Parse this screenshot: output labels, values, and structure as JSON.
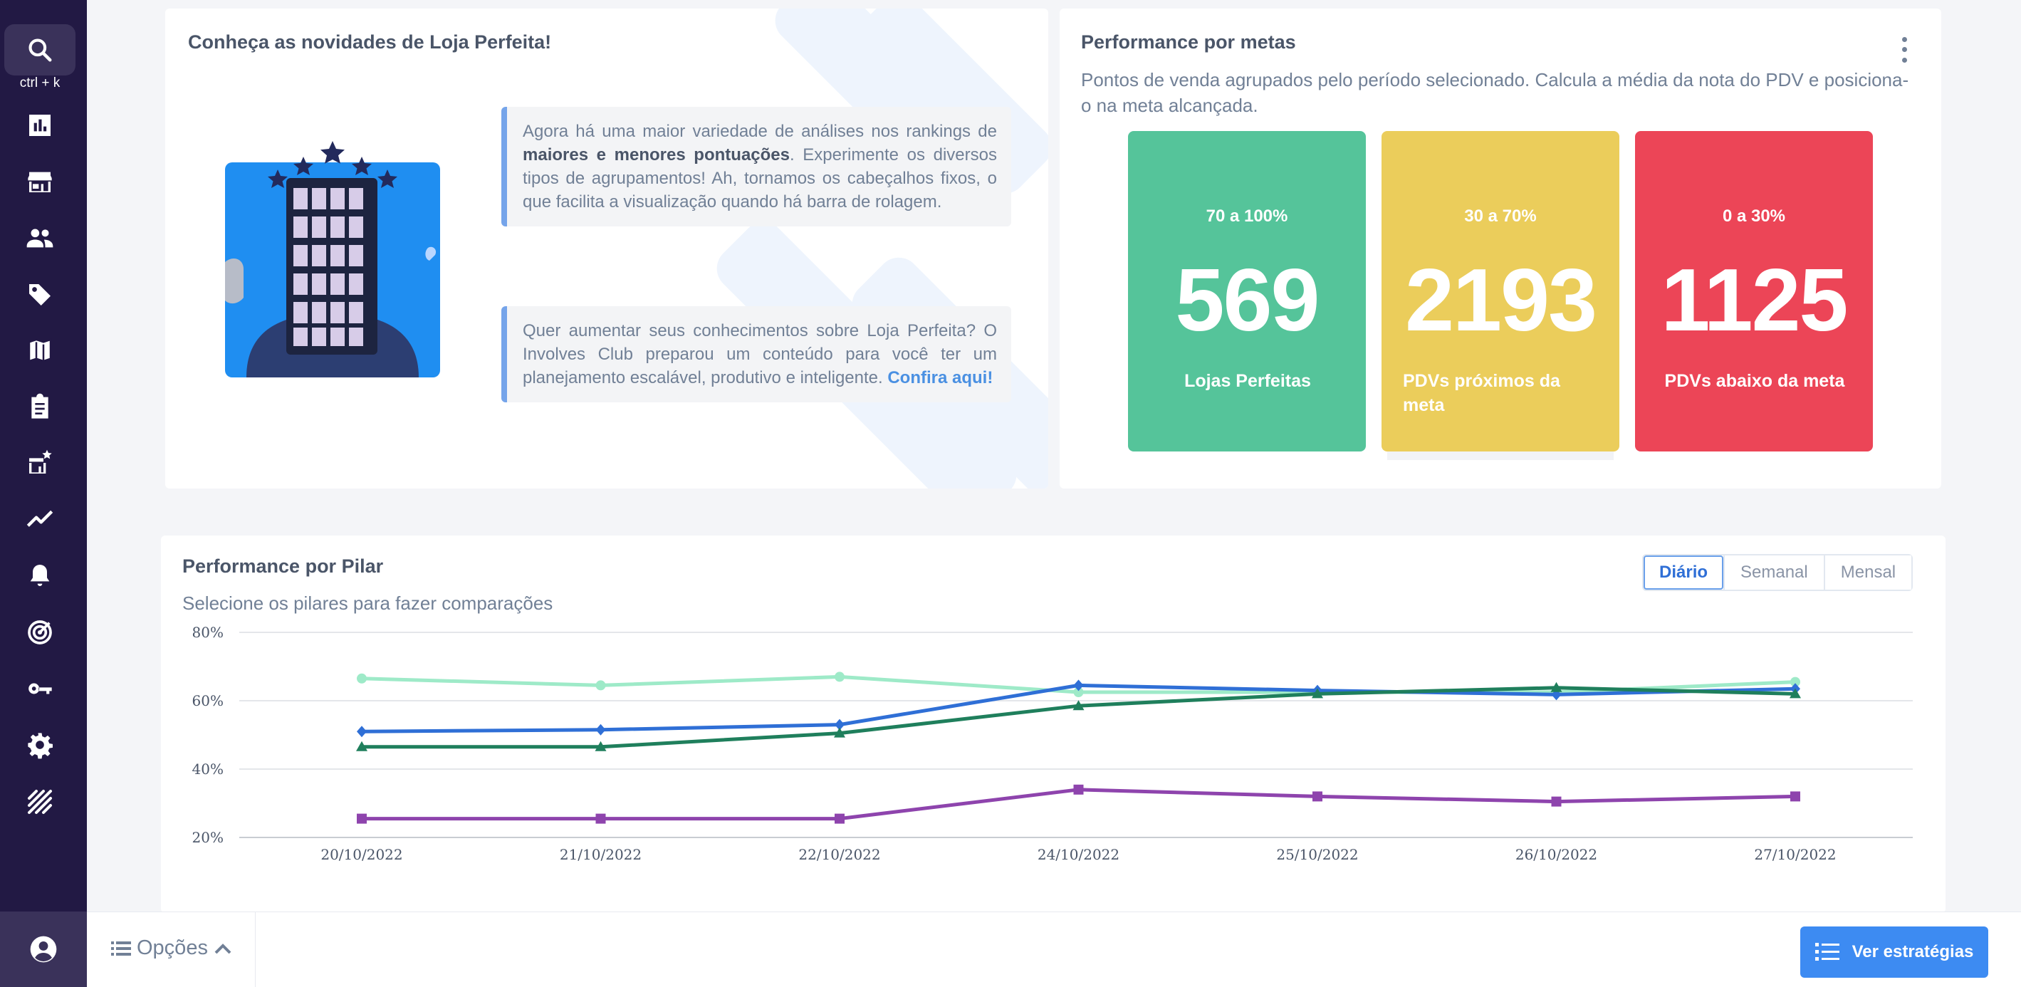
{
  "sidebar": {
    "search_shortcut": "ctrl + k",
    "icons": [
      "search-icon",
      "dashboard-icon",
      "store-icon",
      "people-icon",
      "tag-icon",
      "map-icon",
      "clipboard-icon",
      "store-star-icon",
      "trend-icon",
      "bell-icon",
      "radar-icon",
      "key-icon",
      "gear-icon",
      "stripes-logo-icon",
      "user-account-icon"
    ]
  },
  "news": {
    "title": "Conheça as novidades de Loja Perfeita!",
    "note1": {
      "before": "Agora há uma maior variedade de análises nos rankings de ",
      "bold": "maiores e menores pontuações",
      "after": ". Experimente os diversos tipos de agrupamentos! Ah, tornamos os cabeçalhos fixos, o que facilita a visualização quando há barra de rolagem."
    },
    "note2": {
      "text": "Quer aumentar seus conhecimentos sobre Loja Perfeita? O Involves Club preparou um conteúdo para você ter um planejamento escalável, produtivo e inteligente. ",
      "link": "Confira aqui!"
    }
  },
  "goals": {
    "title": "Performance por metas",
    "description": "Pontos de venda agrupados pelo período selecionado. Calcula a média da nota do PDV e posiciona-o na meta alcançada.",
    "tiles": [
      {
        "range": "70 a 100%",
        "value": "569",
        "label": "Lojas Perfeitas",
        "color": "#55c49a"
      },
      {
        "range": "30 a 70%",
        "value": "2193",
        "label": "PDVs próximos da meta",
        "color": "#ebcd5b"
      },
      {
        "range": "0 a 30%",
        "value": "1125",
        "label": "PDVs abaixo da meta",
        "color": "#ec4557"
      }
    ]
  },
  "pilar": {
    "title": "Performance por Pilar",
    "subtitle": "Selecione os pilares para fazer comparações",
    "periods": [
      "Diário",
      "Semanal",
      "Mensal"
    ],
    "active_period": "Diário"
  },
  "chart_data": {
    "type": "line",
    "x": [
      "20/10/2022",
      "21/10/2022",
      "22/10/2022",
      "24/10/2022",
      "25/10/2022",
      "26/10/2022",
      "27/10/2022"
    ],
    "ylim": [
      20,
      80
    ],
    "yticks": [
      20,
      40,
      60,
      80
    ],
    "ytick_labels": [
      "20%",
      "40%",
      "60%",
      "80%"
    ],
    "grid": true,
    "series": [
      {
        "color": "#9eeac8",
        "marker": "circle",
        "values": [
          66.5,
          64.5,
          67,
          62.5,
          62.5,
          62.5,
          65.5
        ]
      },
      {
        "color": "#2f6fd6",
        "marker": "diamond",
        "values": [
          51,
          51.5,
          53,
          64.5,
          63,
          61.8,
          63.5
        ]
      },
      {
        "color": "#1f7f5c",
        "marker": "triangle",
        "values": [
          46.5,
          46.5,
          50.5,
          58.5,
          62,
          63.8,
          62
        ]
      },
      {
        "color": "#8e44ad",
        "marker": "square",
        "values": [
          25.5,
          25.5,
          25.5,
          34,
          32,
          30.5,
          32
        ]
      }
    ]
  },
  "footer": {
    "options_label": "Opções",
    "cta_label": "Ver estratégias"
  }
}
